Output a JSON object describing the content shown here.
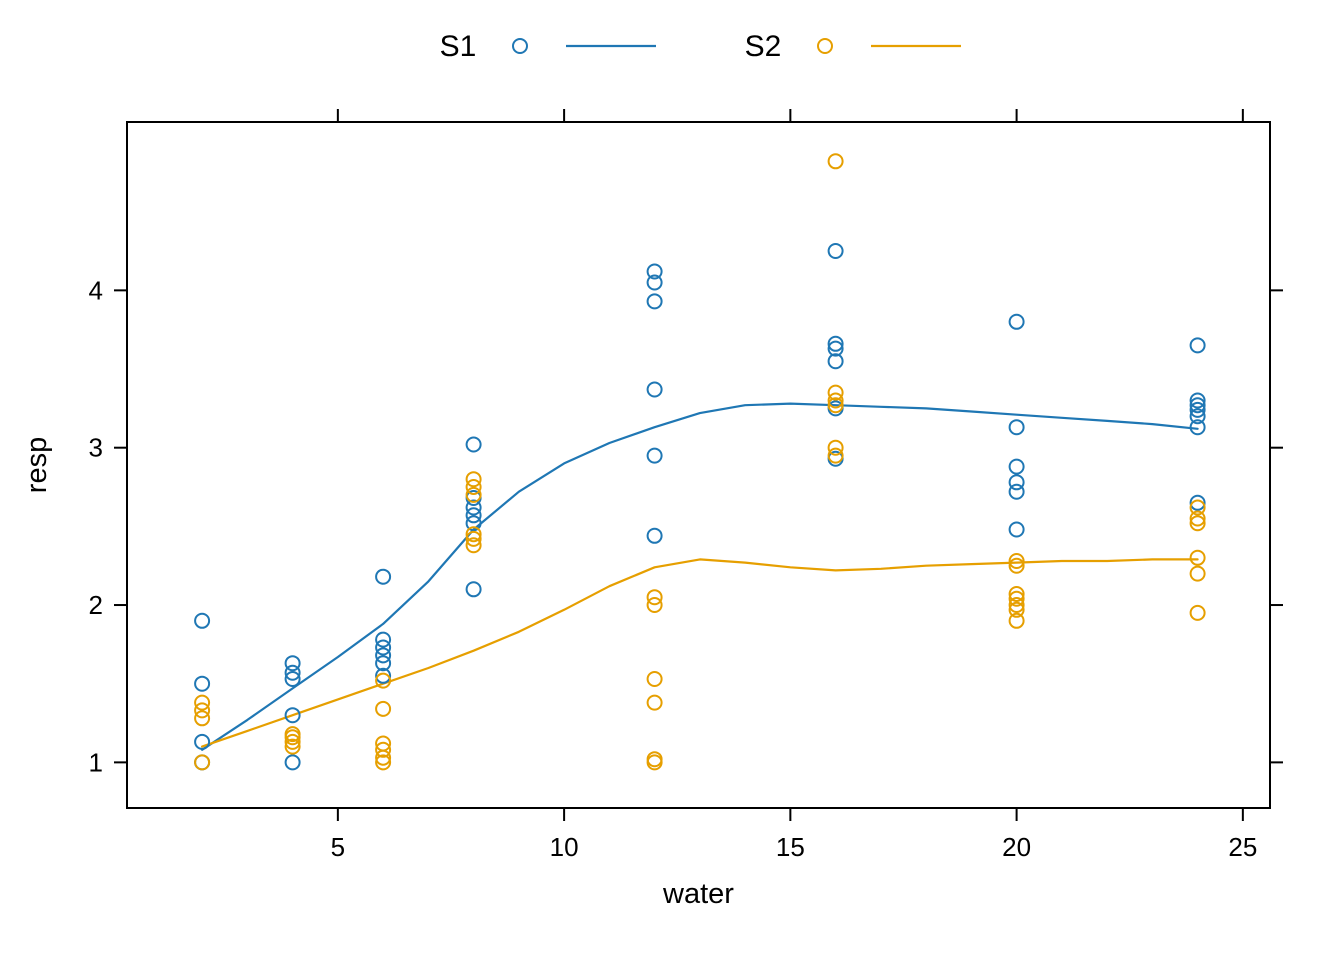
{
  "chart_data": {
    "type": "scatter",
    "title": "",
    "xlabel": "water",
    "ylabel": "resp",
    "xlim": [
      0.34,
      25.6
    ],
    "ylim": [
      0.71,
      5.07
    ],
    "x_ticks": [
      5,
      10,
      15,
      20,
      25
    ],
    "y_ticks": [
      1,
      2,
      3,
      4
    ],
    "grid": false,
    "legend_position": "top-center",
    "frame_color": "#000000",
    "series": [
      {
        "name": "S1",
        "color": "#1f77b4",
        "marker": "open-circle",
        "points": [
          [
            2,
            1.9
          ],
          [
            2,
            1.5
          ],
          [
            2,
            1.13
          ],
          [
            2,
            1.0
          ],
          [
            4,
            1.63
          ],
          [
            4,
            1.57
          ],
          [
            4,
            1.53
          ],
          [
            4,
            1.3
          ],
          [
            4,
            1.0
          ],
          [
            6,
            2.18
          ],
          [
            6,
            1.78
          ],
          [
            6,
            1.73
          ],
          [
            6,
            1.68
          ],
          [
            6,
            1.63
          ],
          [
            6,
            1.55
          ],
          [
            8,
            3.02
          ],
          [
            8,
            2.68
          ],
          [
            8,
            2.62
          ],
          [
            8,
            2.57
          ],
          [
            8,
            2.52
          ],
          [
            8,
            2.1
          ],
          [
            12,
            4.12
          ],
          [
            12,
            4.05
          ],
          [
            12,
            3.93
          ],
          [
            12,
            3.37
          ],
          [
            12,
            2.95
          ],
          [
            12,
            2.44
          ],
          [
            16,
            4.25
          ],
          [
            16,
            3.66
          ],
          [
            16,
            3.63
          ],
          [
            16,
            3.55
          ],
          [
            16,
            3.25
          ],
          [
            16,
            2.93
          ],
          [
            20,
            3.8
          ],
          [
            20,
            3.13
          ],
          [
            20,
            2.88
          ],
          [
            20,
            2.78
          ],
          [
            20,
            2.72
          ],
          [
            20,
            2.48
          ],
          [
            24,
            3.65
          ],
          [
            24,
            3.3
          ],
          [
            24,
            3.27
          ],
          [
            24,
            3.24
          ],
          [
            24,
            3.2
          ],
          [
            24,
            3.13
          ],
          [
            24,
            2.65
          ]
        ],
        "smooth": [
          [
            2,
            1.08
          ],
          [
            3,
            1.27
          ],
          [
            4,
            1.47
          ],
          [
            5,
            1.67
          ],
          [
            6,
            1.88
          ],
          [
            7,
            2.15
          ],
          [
            8,
            2.48
          ],
          [
            9,
            2.72
          ],
          [
            10,
            2.9
          ],
          [
            11,
            3.03
          ],
          [
            12,
            3.13
          ],
          [
            13,
            3.22
          ],
          [
            14,
            3.27
          ],
          [
            15,
            3.28
          ],
          [
            16,
            3.27
          ],
          [
            17,
            3.26
          ],
          [
            18,
            3.25
          ],
          [
            19,
            3.23
          ],
          [
            20,
            3.21
          ],
          [
            21,
            3.19
          ],
          [
            22,
            3.17
          ],
          [
            23,
            3.15
          ],
          [
            24,
            3.12
          ]
        ]
      },
      {
        "name": "S2",
        "color": "#e69f00",
        "marker": "open-circle",
        "points": [
          [
            2,
            1.38
          ],
          [
            2,
            1.33
          ],
          [
            2,
            1.28
          ],
          [
            2,
            1.0
          ],
          [
            4,
            1.18
          ],
          [
            4,
            1.16
          ],
          [
            4,
            1.13
          ],
          [
            4,
            1.1
          ],
          [
            6,
            1.52
          ],
          [
            6,
            1.34
          ],
          [
            6,
            1.12
          ],
          [
            6,
            1.08
          ],
          [
            6,
            1.03
          ],
          [
            6,
            1.0
          ],
          [
            8,
            2.8
          ],
          [
            8,
            2.75
          ],
          [
            8,
            2.7
          ],
          [
            8,
            2.45
          ],
          [
            8,
            2.42
          ],
          [
            8,
            2.38
          ],
          [
            12,
            2.05
          ],
          [
            12,
            2.0
          ],
          [
            12,
            1.53
          ],
          [
            12,
            1.38
          ],
          [
            12,
            1.02
          ],
          [
            12,
            1.0
          ],
          [
            16,
            4.82
          ],
          [
            16,
            3.35
          ],
          [
            16,
            3.3
          ],
          [
            16,
            3.27
          ],
          [
            16,
            3.0
          ],
          [
            16,
            2.95
          ],
          [
            20,
            2.28
          ],
          [
            20,
            2.25
          ],
          [
            20,
            2.07
          ],
          [
            20,
            2.04
          ],
          [
            20,
            2.0
          ],
          [
            20,
            1.97
          ],
          [
            20,
            1.9
          ],
          [
            24,
            2.62
          ],
          [
            24,
            2.55
          ],
          [
            24,
            2.52
          ],
          [
            24,
            2.3
          ],
          [
            24,
            2.2
          ],
          [
            24,
            1.95
          ]
        ],
        "smooth": [
          [
            2,
            1.1
          ],
          [
            3,
            1.2
          ],
          [
            4,
            1.3
          ],
          [
            5,
            1.4
          ],
          [
            6,
            1.5
          ],
          [
            7,
            1.6
          ],
          [
            8,
            1.71
          ],
          [
            9,
            1.83
          ],
          [
            10,
            1.97
          ],
          [
            11,
            2.12
          ],
          [
            12,
            2.24
          ],
          [
            13,
            2.29
          ],
          [
            14,
            2.27
          ],
          [
            15,
            2.24
          ],
          [
            16,
            2.22
          ],
          [
            17,
            2.23
          ],
          [
            18,
            2.25
          ],
          [
            19,
            2.26
          ],
          [
            20,
            2.27
          ],
          [
            21,
            2.28
          ],
          [
            22,
            2.28
          ],
          [
            23,
            2.29
          ],
          [
            24,
            2.29
          ]
        ]
      }
    ]
  }
}
